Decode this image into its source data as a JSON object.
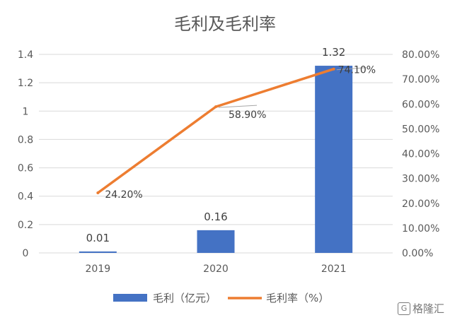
{
  "chart_data": {
    "type": "bar",
    "title": "毛利及毛利率",
    "categories": [
      "2019",
      "2020",
      "2021"
    ],
    "series": [
      {
        "name": "毛利（亿元）",
        "type": "bar",
        "axis": "left",
        "values": [
          0.01,
          0.16,
          1.32
        ],
        "labels": [
          "0.01",
          "0.16",
          "1.32"
        ],
        "color": "#4472c4"
      },
      {
        "name": "毛利率（%）",
        "type": "line",
        "axis": "right",
        "values": [
          24.2,
          58.9,
          74.1
        ],
        "labels": [
          "24.20%",
          "58.90%",
          "74.10%"
        ],
        "color": "#ed7d31"
      }
    ],
    "y_left": {
      "ticks": [
        "0",
        "0.2",
        "0.4",
        "0.6",
        "0.8",
        "1",
        "1.2",
        "1.4"
      ],
      "range": [
        0,
        1.4
      ]
    },
    "y_right": {
      "ticks": [
        "0.00%",
        "10.00%",
        "20.00%",
        "30.00%",
        "40.00%",
        "50.00%",
        "60.00%",
        "70.00%",
        "80.00%"
      ],
      "range": [
        0,
        80
      ]
    },
    "grid": true,
    "legend": "bottom"
  },
  "watermark": {
    "mark": "G",
    "text": "格隆汇"
  }
}
